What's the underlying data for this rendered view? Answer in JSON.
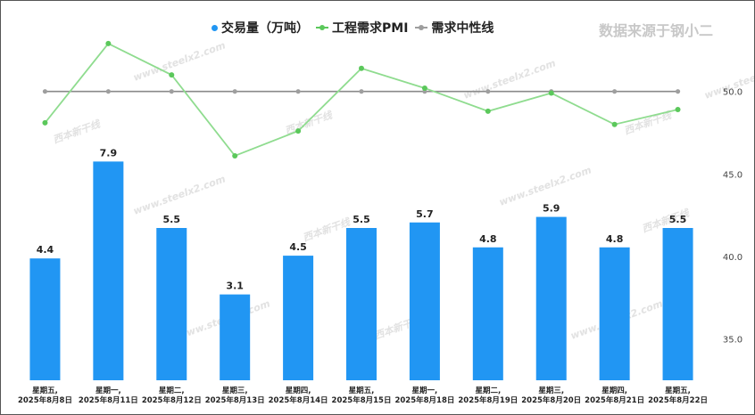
{
  "legend": {
    "volume": "交易量（万吨）",
    "pmi": "工程需求PMI",
    "neutral": "需求中性线"
  },
  "source_note": "数据来源于钢小二",
  "watermark": {
    "site": "www.steelx2.com",
    "brand": "西本新干线"
  },
  "colors": {
    "bar": "#2196f3",
    "pmi": "#5bc85b",
    "pmi_line": "#8fdc8f",
    "neutral": "#9e9e9e",
    "neutral_line": "#8a8a8a"
  },
  "chart_data": {
    "type": "bar+line",
    "categories": [
      "星期五,|2025年8月8日",
      "星期一,|2025年8月11日",
      "星期二,|2025年8月12日",
      "星期三,|2025年8月13日",
      "星期四,|2025年8月14日",
      "星期五,|2025年8月15日",
      "星期一,|2025年8月18日",
      "星期二,|2025年8月19日",
      "星期三,|2025年8月20日",
      "星期四,|2025年8月21日",
      "星期五,|2025年8月22日"
    ],
    "series": [
      {
        "name": "交易量（万吨）",
        "type": "bar",
        "values": [
          4.4,
          7.9,
          5.5,
          3.1,
          4.5,
          5.5,
          5.7,
          4.8,
          5.9,
          4.8,
          5.5
        ]
      },
      {
        "name": "工程需求PMI",
        "type": "line",
        "axis": "right",
        "values": [
          48.1,
          52.9,
          51.0,
          46.1,
          47.6,
          51.4,
          50.2,
          48.8,
          49.9,
          48.0,
          48.9
        ]
      },
      {
        "name": "需求中性线",
        "type": "line",
        "axis": "right",
        "values": [
          50,
          50,
          50,
          50,
          50,
          50,
          50,
          50,
          50,
          50,
          50
        ]
      }
    ],
    "y_right": {
      "ticks": [
        35.0,
        40.0,
        45.0,
        50.0
      ],
      "labels": [
        "35.0",
        "40.0",
        "45.0",
        "50.0"
      ],
      "range": [
        32.5,
        55.0
      ]
    },
    "y_left": {
      "range": [
        0,
        11
      ],
      "hidden": true
    },
    "data_labels": [
      "4.4",
      "7.9",
      "5.5",
      "3.1",
      "4.5",
      "5.5",
      "5.7",
      "4.8",
      "5.9",
      "4.8",
      "5.5"
    ]
  }
}
